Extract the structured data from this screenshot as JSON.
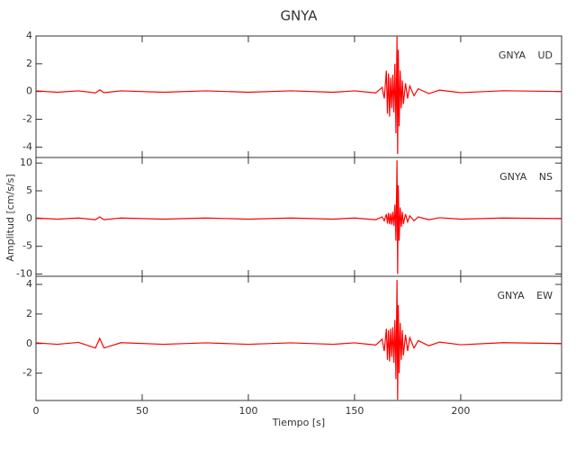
{
  "title": "GNYA",
  "xlabel": "Tiempo [s]",
  "ylabel": "Amplitud [cm/s/s]",
  "chart_data": [
    {
      "type": "line",
      "label": "GNYA UD",
      "color": "#ff0000",
      "x": [
        0,
        10,
        20,
        28,
        30,
        32,
        40,
        60,
        80,
        100,
        120,
        140,
        150,
        160,
        163,
        164,
        165,
        165.5,
        166,
        166.5,
        167,
        167.5,
        168,
        168.5,
        169,
        169.5,
        170,
        170.3,
        170.6,
        171,
        171.5,
        172,
        172.5,
        173,
        174,
        175,
        176,
        178,
        180,
        185,
        190,
        200,
        220,
        247.5
      ],
      "values": [
        0.05,
        -0.05,
        0.05,
        -0.1,
        0.12,
        -0.08,
        0.05,
        -0.05,
        0.05,
        -0.05,
        0.05,
        -0.05,
        0.05,
        -0.1,
        0.3,
        -0.5,
        1.5,
        -1.6,
        1.3,
        -1.8,
        1.0,
        -1.2,
        1.2,
        -1.5,
        2.0,
        -3.0,
        4.0,
        -4.5,
        3.0,
        -2.5,
        1.5,
        -1.2,
        0.8,
        -0.9,
        0.6,
        -0.5,
        0.4,
        -0.3,
        0.2,
        -0.15,
        0.1,
        -0.08,
        0.06,
        0
      ],
      "xlim": [
        0,
        247.5
      ],
      "xticks": [
        0,
        50,
        100,
        150,
        200
      ],
      "ylim": [
        -4.75,
        4.0
      ],
      "yticks": [
        -4,
        -2,
        0,
        2,
        4
      ]
    },
    {
      "type": "line",
      "label": "GNYA NS",
      "color": "#ff0000",
      "x": [
        0,
        10,
        20,
        28,
        30,
        32,
        40,
        60,
        80,
        100,
        120,
        140,
        150,
        160,
        163,
        164,
        165,
        165.5,
        166,
        166.5,
        167,
        167.5,
        168,
        168.5,
        169,
        169.5,
        170,
        170.3,
        170.6,
        171,
        171.5,
        172,
        172.5,
        173,
        174,
        175,
        176,
        178,
        180,
        185,
        190,
        200,
        220,
        247.5
      ],
      "values": [
        0.1,
        -0.1,
        0.1,
        -0.2,
        0.3,
        -0.2,
        0.1,
        -0.1,
        0.1,
        -0.1,
        0.1,
        -0.1,
        0.1,
        -0.2,
        0.3,
        -0.4,
        0.8,
        -0.9,
        1.0,
        -1.0,
        0.9,
        -1.1,
        1.2,
        -1.3,
        2.5,
        -4.0,
        10.5,
        -10.0,
        6.0,
        -4.0,
        2.0,
        -1.5,
        1.2,
        -1.0,
        0.8,
        -0.6,
        0.5,
        -0.4,
        0.3,
        -0.2,
        0.15,
        -0.1,
        0.1,
        0
      ],
      "xlim": [
        0,
        247.5
      ],
      "xticks": [
        0,
        50,
        100,
        150,
        200
      ],
      "ylim": [
        -10.4,
        11
      ],
      "yticks": [
        -10,
        -5,
        0,
        5,
        10
      ]
    },
    {
      "type": "line",
      "label": "GNYA EW",
      "color": "#ff0000",
      "x": [
        0,
        10,
        20,
        28,
        30,
        32,
        40,
        60,
        80,
        100,
        120,
        140,
        150,
        160,
        163,
        164,
        165,
        165.5,
        166,
        166.5,
        167,
        167.5,
        168,
        168.5,
        169,
        169.5,
        170,
        170.3,
        170.6,
        171,
        171.5,
        172,
        172.5,
        173,
        174,
        175,
        176,
        178,
        180,
        185,
        190,
        200,
        220,
        247.5
      ],
      "values": [
        0.05,
        -0.05,
        0.08,
        -0.3,
        0.35,
        -0.3,
        0.06,
        -0.05,
        0.05,
        -0.05,
        0.05,
        -0.05,
        0.05,
        -0.1,
        0.3,
        -0.5,
        1.0,
        -1.1,
        0.9,
        -1.2,
        1.0,
        -0.9,
        1.1,
        -1.3,
        1.6,
        -2.4,
        4.3,
        -3.8,
        2.6,
        -2.0,
        1.4,
        -1.1,
        0.9,
        -0.8,
        0.6,
        -0.5,
        0.4,
        -0.3,
        0.2,
        -0.15,
        0.1,
        -0.08,
        0.06,
        0
      ],
      "xlim": [
        0,
        247.5
      ],
      "xticks": [
        0,
        50,
        100,
        150,
        200
      ],
      "ylim": [
        -3.85,
        4.55
      ],
      "yticks": [
        -2,
        0,
        2,
        4
      ]
    }
  ]
}
